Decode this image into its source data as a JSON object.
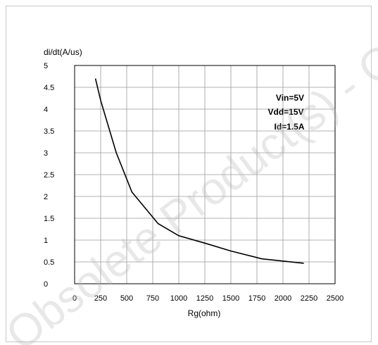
{
  "chart_data": {
    "type": "line",
    "title": "",
    "xlabel": "Rg(ohm)",
    "ylabel": "di/dt(A/us)",
    "xlim": [
      0,
      2500
    ],
    "ylim": [
      0,
      5
    ],
    "x_ticks": [
      "0",
      "250",
      "500",
      "750",
      "1000",
      "1250",
      "1500",
      "1750",
      "2000",
      "2250",
      "2500"
    ],
    "y_ticks": [
      "0",
      "0.5",
      "1",
      "1.5",
      "2",
      "2.5",
      "3",
      "3.5",
      "4",
      "4.5",
      "5"
    ],
    "grid": true,
    "legend": "none",
    "series": [
      {
        "color": "#000000",
        "x": [
          200,
          250,
          400,
          550,
          800,
          1000,
          1250,
          1500,
          1800,
          2200
        ],
        "y": [
          4.7,
          4.2,
          3.0,
          2.1,
          1.38,
          1.1,
          0.93,
          0.75,
          0.57,
          0.47
        ]
      }
    ],
    "annotations": [
      "Vin=5V",
      "Vdd=15V",
      "Id=1.5A"
    ]
  },
  "watermark": {
    "text": "Obsolete Product(s) - Obsolete Product(s)",
    "color": "#b8b8b8"
  }
}
